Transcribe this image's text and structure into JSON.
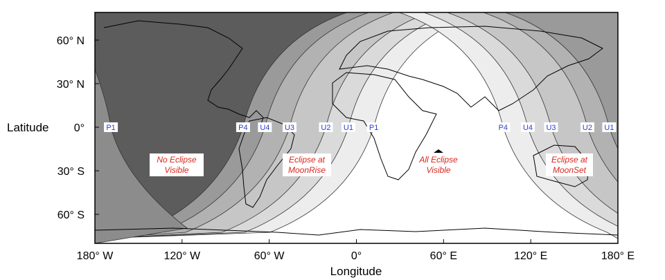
{
  "axes": {
    "xlabel": "Longitude",
    "ylabel": "Latitude",
    "xticks": [
      {
        "lon": -180,
        "label": "180° W"
      },
      {
        "lon": -120,
        "label": "120° W"
      },
      {
        "lon": -60,
        "label": "60° W"
      },
      {
        "lon": 0,
        "label": "0°"
      },
      {
        "lon": 60,
        "label": "60° E"
      },
      {
        "lon": 120,
        "label": "120° E"
      },
      {
        "lon": 180,
        "label": "180° E"
      }
    ],
    "yticks": [
      {
        "lat": 60,
        "label": "60° N"
      },
      {
        "lat": 30,
        "label": "30° N"
      },
      {
        "lat": 0,
        "label": "0°"
      },
      {
        "lat": -30,
        "label": "30° S"
      },
      {
        "lat": -60,
        "label": "60° S"
      }
    ]
  },
  "contours_moonrise": [
    {
      "label": "P1",
      "lon": 12,
      "fill": "#ededed"
    },
    {
      "label": "U1",
      "lon": -5.5,
      "fill": "#dadada"
    },
    {
      "label": "U2",
      "lon": -21,
      "fill": "#c6c6c6"
    },
    {
      "label": "U3",
      "lon": -46,
      "fill": "#b2b2b2"
    },
    {
      "label": "U4",
      "lon": -63,
      "fill": "#9a9a9a"
    },
    {
      "label": "P4",
      "lon": -78,
      "fill": "#5c5c5c"
    }
  ],
  "contour_wrap": {
    "label": "P1",
    "lon": -169,
    "fill": "#8c8c8c"
  },
  "contours_moonset": [
    {
      "label": "P4",
      "lon": 101,
      "fill": "#ededed"
    },
    {
      "label": "U4",
      "lon": 118,
      "fill": "#dadada"
    },
    {
      "label": "U3",
      "lon": 134,
      "fill": "#c6c6c6"
    },
    {
      "label": "U2",
      "lon": 159,
      "fill": "#b2b2b2"
    },
    {
      "label": "U1",
      "lon": 174,
      "fill": "#9a9a9a"
    }
  ],
  "regions": {
    "none": [
      "No Eclipse",
      "Visible"
    ],
    "moonrise": [
      "Eclipse at",
      "MoonRise"
    ],
    "all": [
      "All Eclipse",
      "Visible"
    ],
    "moonset": [
      "Eclipse at",
      "MoonSet"
    ]
  },
  "colors": {
    "label_text": "#2a3fd0",
    "region_text": "#d8261c"
  }
}
